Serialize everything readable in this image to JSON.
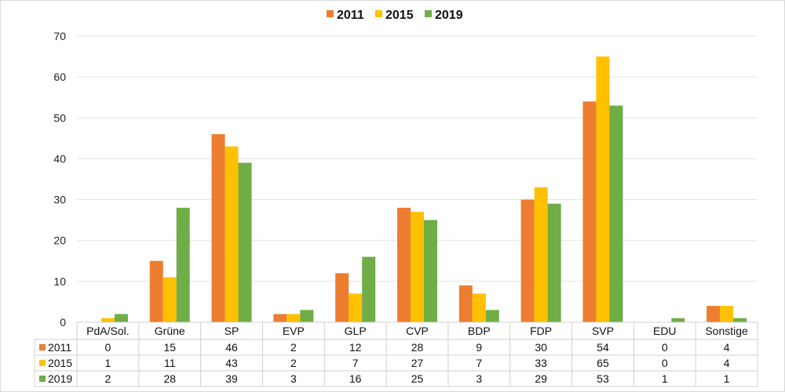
{
  "chart_data": {
    "type": "bar",
    "categories": [
      "PdA/Sol.",
      "Grüne",
      "SP",
      "EVP",
      "GLP",
      "CVP",
      "BDP",
      "FDP",
      "SVP",
      "EDU",
      "Sonstige"
    ],
    "series": [
      {
        "name": "2011",
        "color": "#ed7d31",
        "values": [
          0,
          15,
          46,
          2,
          12,
          28,
          9,
          30,
          54,
          0,
          4
        ]
      },
      {
        "name": "2015",
        "color": "#ffc000",
        "values": [
          1,
          11,
          43,
          2,
          7,
          27,
          7,
          33,
          65,
          0,
          4
        ]
      },
      {
        "name": "2019",
        "color": "#70ad47",
        "values": [
          2,
          28,
          39,
          3,
          16,
          25,
          3,
          29,
          53,
          1,
          1
        ]
      }
    ],
    "yticks": [
      0,
      10,
      20,
      30,
      40,
      50,
      60,
      70
    ],
    "ylim": [
      0,
      70
    ],
    "title": "",
    "xlabel": "",
    "ylabel": "",
    "legend_position": "top-center",
    "grid": true,
    "data_table": true
  }
}
